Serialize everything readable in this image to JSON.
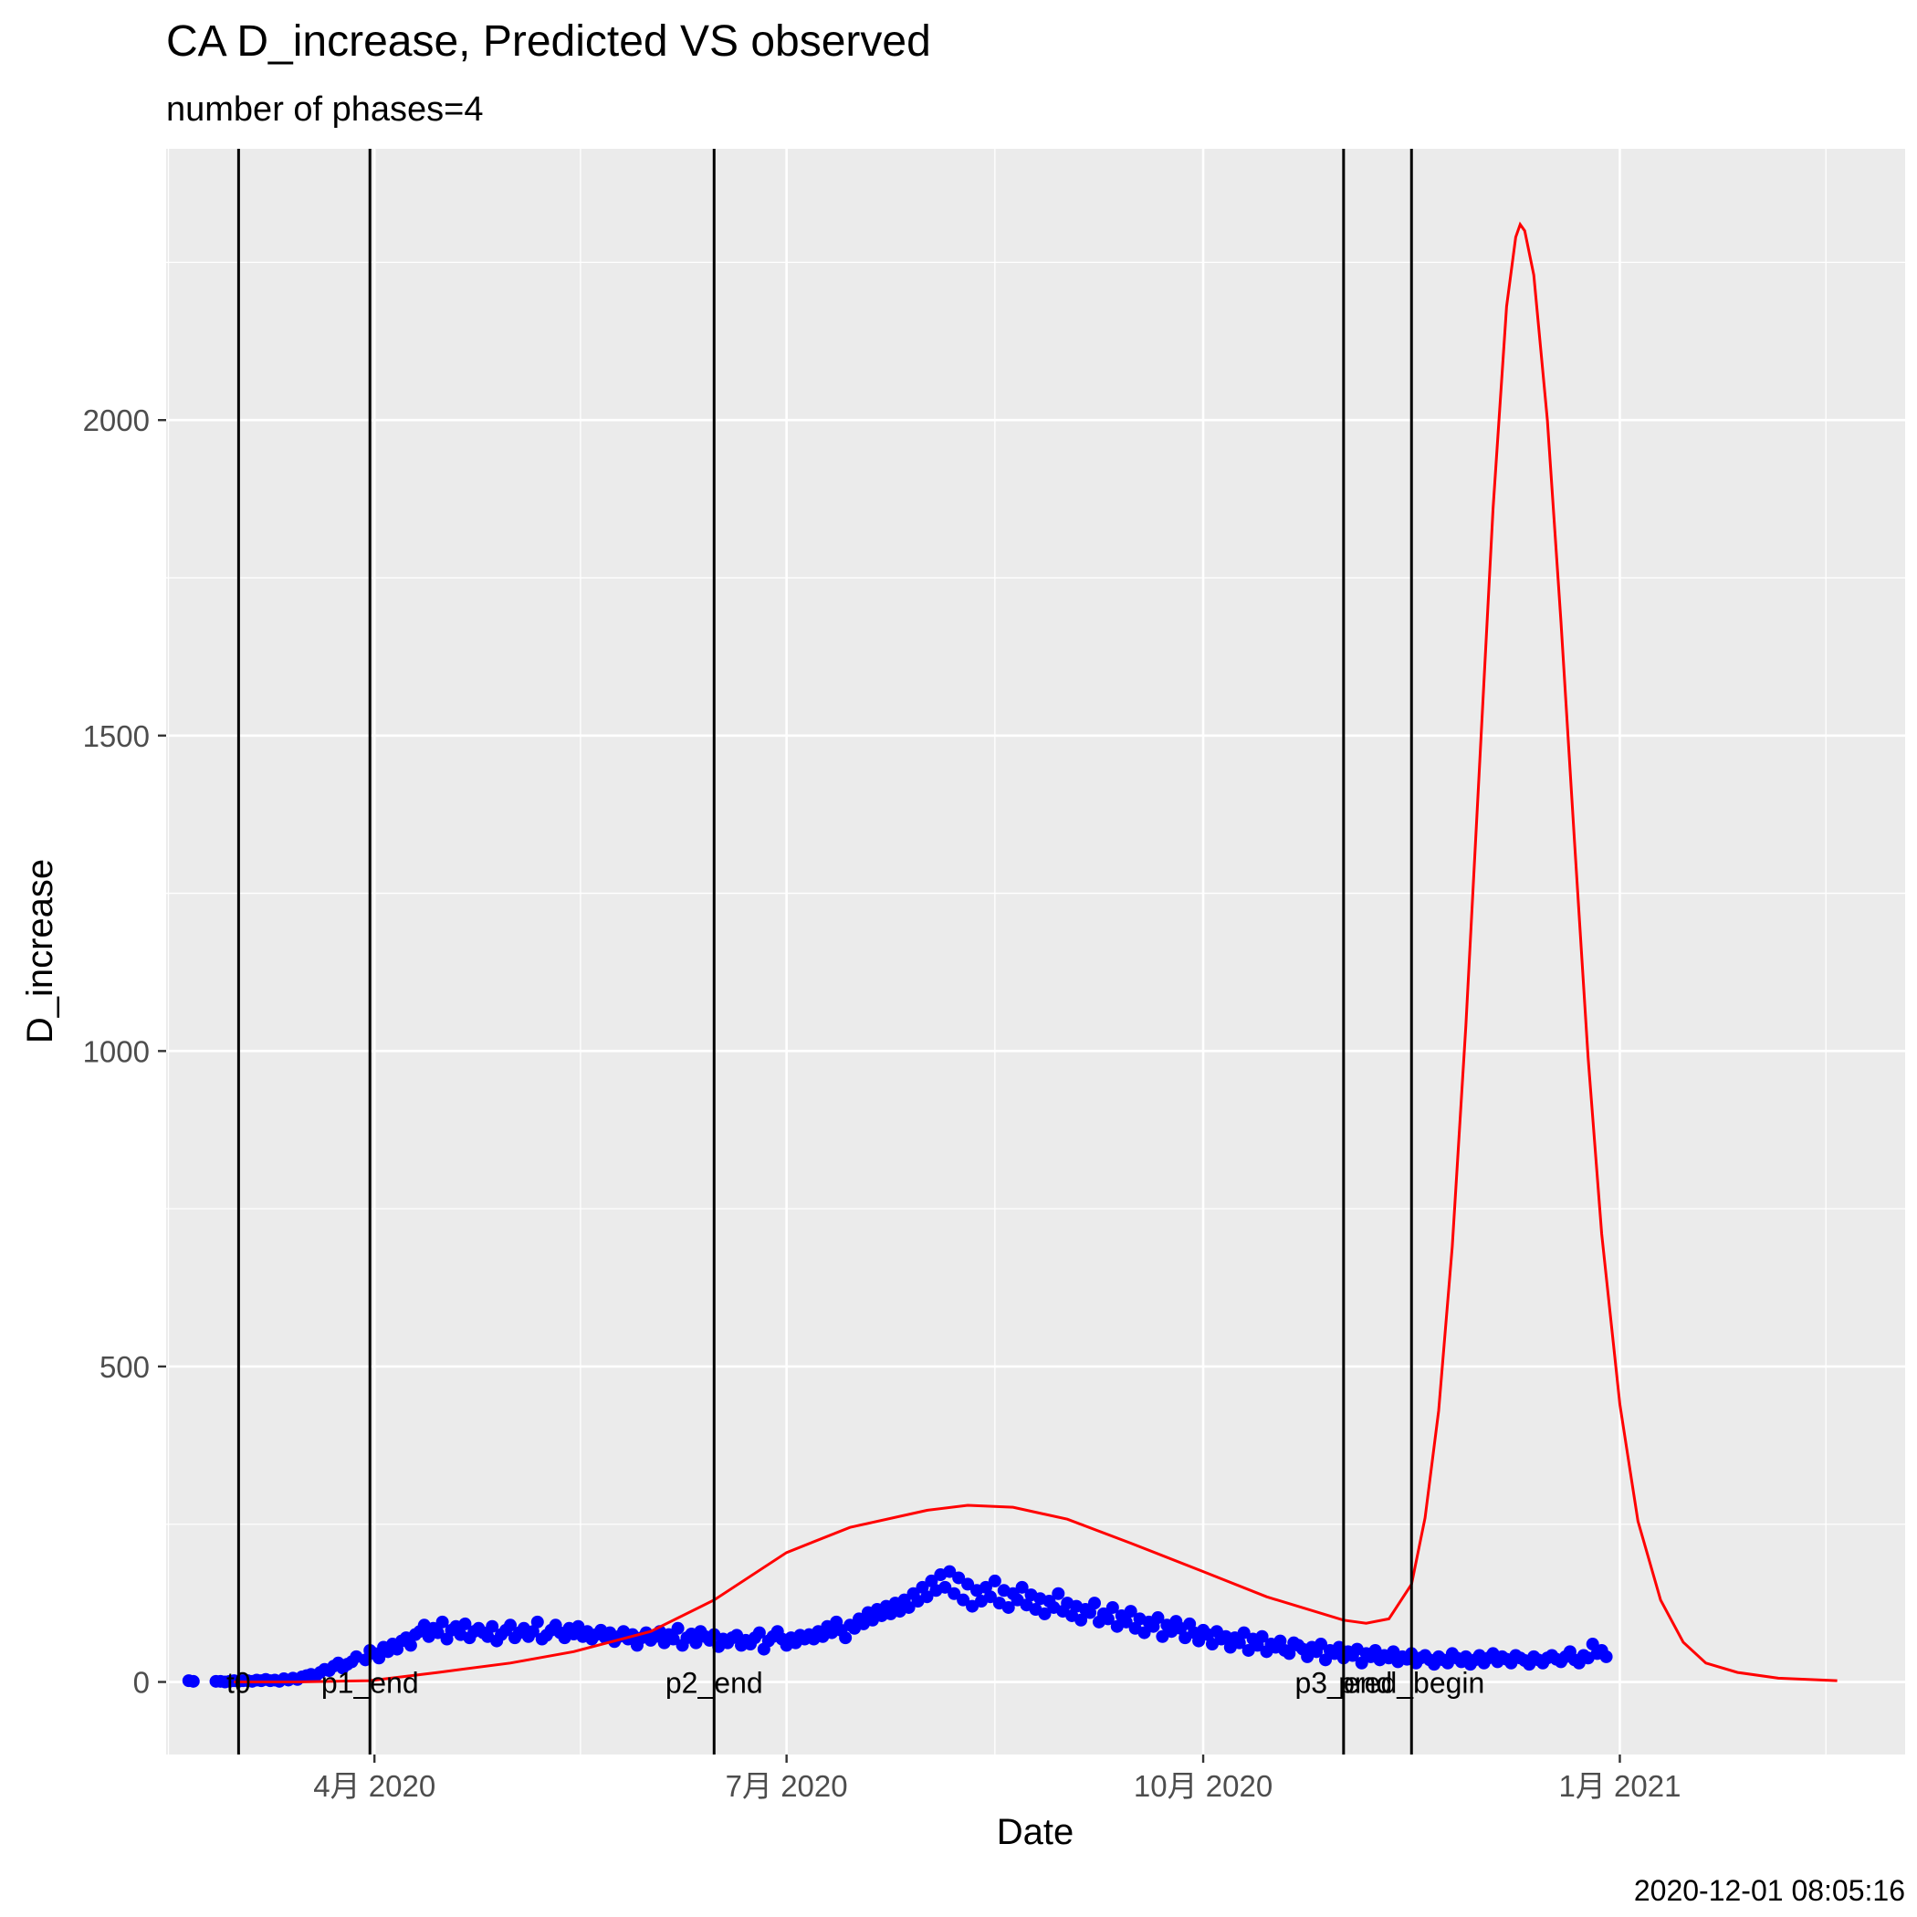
{
  "chart_data": {
    "type": "line",
    "title": "CA D_increase, Predicted VS observed",
    "subtitle": "number of phases=4",
    "xlabel": "Date",
    "ylabel": "D_increase",
    "caption": "2020-12-01 08:05:16",
    "xlim": [
      "2020-02-15",
      "2021-03-05"
    ],
    "ylim": [
      -115,
      2430
    ],
    "x_ticks": [
      {
        "date": "2020-04-01",
        "label": "4月 2020"
      },
      {
        "date": "2020-07-01",
        "label": "7月 2020"
      },
      {
        "date": "2020-10-01",
        "label": "10月 2020"
      },
      {
        "date": "2021-01-01",
        "label": "1月 2021"
      }
    ],
    "y_ticks": [
      0,
      500,
      1000,
      1500,
      2000
    ],
    "grid": true,
    "vlines": [
      {
        "date": "2020-03-02",
        "label": "t0"
      },
      {
        "date": "2020-03-31",
        "label": "p1_end"
      },
      {
        "date": "2020-06-15",
        "label": "p2_end"
      },
      {
        "date": "2020-11-01",
        "label": "p3_end"
      },
      {
        "date": "2020-11-16",
        "label": "pred_begin"
      }
    ],
    "predicted": {
      "color": "#ff0000",
      "points": [
        [
          "2020-03-01",
          0
        ],
        [
          "2020-03-15",
          0
        ],
        [
          "2020-03-31",
          2
        ],
        [
          "2020-04-15",
          15
        ],
        [
          "2020-05-01",
          30
        ],
        [
          "2020-05-15",
          48
        ],
        [
          "2020-06-01",
          80
        ],
        [
          "2020-06-15",
          130
        ],
        [
          "2020-07-01",
          205
        ],
        [
          "2020-07-15",
          245
        ],
        [
          "2020-08-01",
          272
        ],
        [
          "2020-08-10",
          280
        ],
        [
          "2020-08-20",
          277
        ],
        [
          "2020-09-01",
          258
        ],
        [
          "2020-09-15",
          220
        ],
        [
          "2020-10-01",
          175
        ],
        [
          "2020-10-15",
          135
        ],
        [
          "2020-11-01",
          98
        ],
        [
          "2020-11-06",
          93
        ],
        [
          "2020-11-11",
          100
        ],
        [
          "2020-11-16",
          155
        ],
        [
          "2020-11-19",
          260
        ],
        [
          "2020-11-22",
          430
        ],
        [
          "2020-11-25",
          690
        ],
        [
          "2020-11-28",
          1040
        ],
        [
          "2020-12-01",
          1450
        ],
        [
          "2020-12-04",
          1860
        ],
        [
          "2020-12-07",
          2180
        ],
        [
          "2020-12-09",
          2290
        ],
        [
          "2020-12-10",
          2310
        ],
        [
          "2020-12-11",
          2300
        ],
        [
          "2020-12-13",
          2230
        ],
        [
          "2020-12-16",
          2000
        ],
        [
          "2020-12-19",
          1680
        ],
        [
          "2020-12-22",
          1330
        ],
        [
          "2020-12-25",
          990
        ],
        [
          "2020-12-28",
          710
        ],
        [
          "2021-01-01",
          440
        ],
        [
          "2021-01-05",
          255
        ],
        [
          "2021-01-10",
          130
        ],
        [
          "2021-01-15",
          63
        ],
        [
          "2021-01-20",
          30
        ],
        [
          "2021-01-27",
          15
        ],
        [
          "2021-02-05",
          6
        ],
        [
          "2021-02-18",
          2
        ]
      ]
    },
    "observed": {
      "color": "#0000ff",
      "series": [
        {
          "start": "2020-02-20",
          "values": [
            2,
            1
          ]
        },
        {
          "start": "2020-02-26",
          "values": [
            1,
            1,
            0,
            1,
            2,
            1,
            2,
            2,
            1,
            3,
            2,
            4,
            2,
            3,
            1,
            5,
            3,
            6,
            4,
            8,
            10,
            12,
            9,
            15,
            20,
            18,
            25,
            30,
            22,
            28,
            32,
            40
          ]
        },
        {
          "start": "2020-03-30",
          "values": [
            35,
            50,
            45,
            38,
            55,
            48,
            60,
            52,
            65,
            70,
            58,
            75,
            80,
            90,
            72,
            85,
            78,
            95,
            68,
            82,
            88,
            75,
            92,
            70,
            80,
            85,
            78,
            72,
            88,
            65,
            75,
            82,
            90,
            70,
            78,
            85,
            72,
            80,
            95,
            68,
            74,
            82,
            90,
            78,
            70,
            85,
            76,
            88,
            72,
            80,
            68,
            75,
            82,
            70,
            78,
            64,
            72,
            80,
            68,
            75,
            58,
            70,
            78,
            66,
            72,
            80,
            62,
            75,
            68,
            85,
            58,
            70,
            76,
            62,
            80,
            72,
            66,
            75,
            56,
            68,
            62,
            70,
            74,
            58,
            66,
            60,
            70,
            78,
            52,
            65,
            72,
            80,
            68,
            58,
            70,
            62,
            74,
            68
          ]
        },
        {
          "start": "2020-07-06",
          "values": [
            75,
            68,
            80,
            72,
            88,
            78,
            95,
            82,
            70,
            90,
            85,
            100,
            92,
            110,
            98,
            115,
            105,
            120,
            108,
            125,
            112,
            130,
            118,
            140,
            128,
            150,
            135,
            160,
            145,
            170,
            150,
            175,
            140,
            165,
            130,
            155,
            120,
            145,
            128,
            150,
            135,
            160,
            125,
            145,
            118,
            140,
            130,
            150,
            122,
            138,
            115,
            132,
            108,
            128,
            118,
            140,
            112,
            125,
            105,
            120,
            98,
            115,
            110,
            125,
            95,
            108,
            100,
            118,
            88,
            105,
            95,
            112,
            85,
            100,
            78,
            95,
            88,
            102,
            72,
            90,
            80,
            96
          ]
        },
        {
          "start": "2020-09-26",
          "values": [
            85,
            70,
            92,
            78,
            65,
            82,
            75,
            60,
            80,
            68,
            72,
            55,
            70,
            62,
            78,
            50,
            68,
            58,
            72,
            48,
            60,
            55,
            65,
            50,
            45,
            62,
            58,
            52,
            40,
            55,
            48,
            60,
            35,
            50,
            45,
            55,
            38,
            48,
            42,
            52,
            30,
            45,
            40,
            50,
            35,
            42,
            38,
            48,
            32,
            40,
            36,
            45,
            30,
            38,
            42,
            35,
            28,
            40,
            35,
            30,
            45,
            38,
            32,
            40,
            28,
            35,
            42,
            30,
            38,
            45,
            32,
            40,
            36,
            30,
            42,
            38,
            34,
            28,
            40,
            35,
            30,
            38,
            42,
            36,
            32,
            40,
            48,
            35,
            30,
            42,
            38,
            60,
            45,
            50,
            40
          ]
        }
      ]
    }
  }
}
